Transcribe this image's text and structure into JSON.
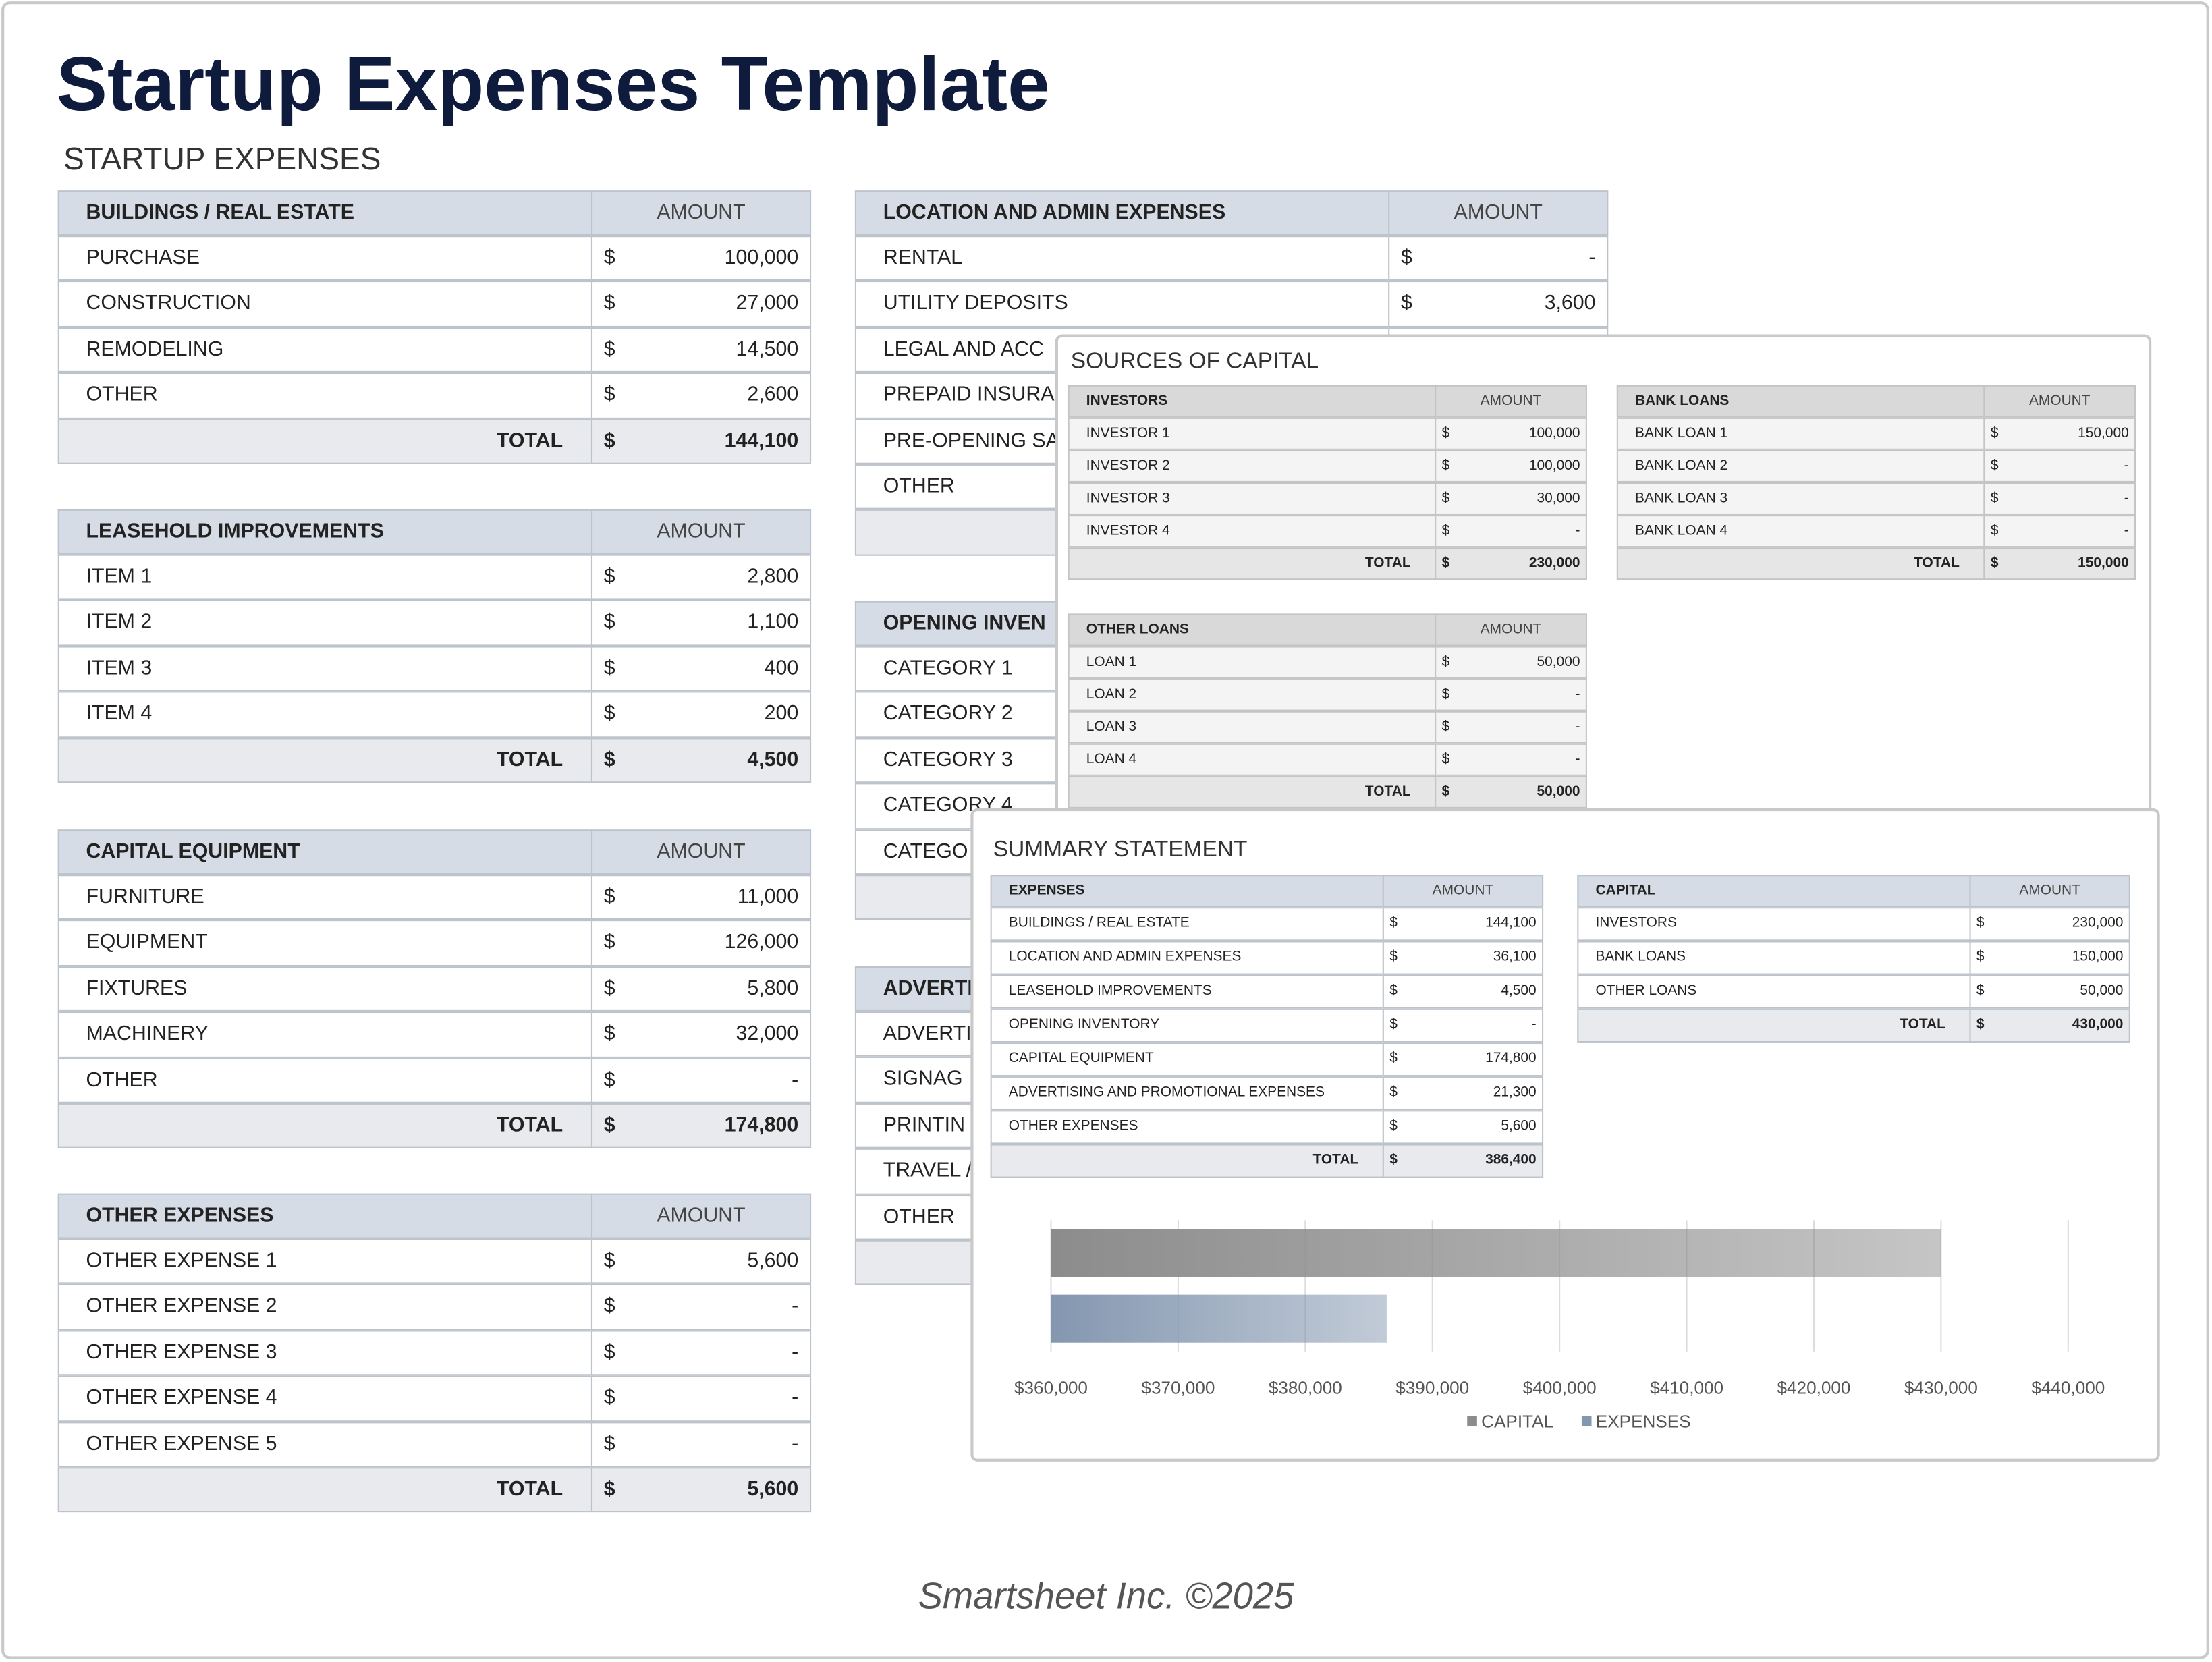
{
  "title": "Startup Expenses Template",
  "heading": "STARTUP EXPENSES",
  "currency": "$",
  "expense_tables": [
    {
      "title": "BUILDINGS / REAL ESTATE",
      "amount_header": "AMOUNT",
      "rows": [
        {
          "label": "PURCHASE",
          "amount": "100,000"
        },
        {
          "label": "CONSTRUCTION",
          "amount": "27,000"
        },
        {
          "label": "REMODELING",
          "amount": "14,500"
        },
        {
          "label": "OTHER",
          "amount": "2,600"
        }
      ],
      "total_label": "TOTAL",
      "total": "144,100"
    },
    {
      "title": "LEASEHOLD IMPROVEMENTS",
      "amount_header": "AMOUNT",
      "rows": [
        {
          "label": "ITEM 1",
          "amount": "2,800"
        },
        {
          "label": "ITEM 2",
          "amount": "1,100"
        },
        {
          "label": "ITEM 3",
          "amount": "400"
        },
        {
          "label": "ITEM 4",
          "amount": "200"
        }
      ],
      "total_label": "TOTAL",
      "total": "4,500"
    },
    {
      "title": "CAPITAL EQUIPMENT",
      "amount_header": "AMOUNT",
      "rows": [
        {
          "label": "FURNITURE",
          "amount": "11,000"
        },
        {
          "label": "EQUIPMENT",
          "amount": "126,000"
        },
        {
          "label": "FIXTURES",
          "amount": "5,800"
        },
        {
          "label": "MACHINERY",
          "amount": "32,000"
        },
        {
          "label": "OTHER",
          "amount": "-"
        }
      ],
      "total_label": "TOTAL",
      "total": "174,800"
    },
    {
      "title": "OTHER EXPENSES",
      "amount_header": "AMOUNT",
      "rows": [
        {
          "label": "OTHER EXPENSE 1",
          "amount": "5,600"
        },
        {
          "label": "OTHER EXPENSE 2",
          "amount": "-"
        },
        {
          "label": "OTHER EXPENSE 3",
          "amount": "-"
        },
        {
          "label": "OTHER EXPENSE 4",
          "amount": "-"
        },
        {
          "label": "OTHER EXPENSE 5",
          "amount": "-"
        }
      ],
      "total_label": "TOTAL",
      "total": "5,600"
    },
    {
      "title": "LOCATION AND ADMIN EXPENSES",
      "amount_header": "AMOUNT",
      "rows": [
        {
          "label": "RENTAL",
          "amount": "-"
        },
        {
          "label": "UTILITY DEPOSITS",
          "amount": "3,600"
        },
        {
          "label": "LEGAL AND ACC"
        },
        {
          "label": "PREPAID INSURAN"
        },
        {
          "label": "PRE-OPENING SA"
        },
        {
          "label": "OTHER"
        }
      ]
    },
    {
      "title": "OPENING INVEN",
      "rows": [
        {
          "label": "CATEGORY 1"
        },
        {
          "label": "CATEGORY 2"
        },
        {
          "label": "CATEGORY 3"
        },
        {
          "label": "CATEGORY 4"
        },
        {
          "label": "CATEGO"
        }
      ]
    },
    {
      "title": "ADVERTI",
      "rows": [
        {
          "label": "ADVERTI"
        },
        {
          "label": "SIGNAG"
        },
        {
          "label": "PRINTIN"
        },
        {
          "label": "TRAVEL /"
        },
        {
          "label": "OTHER"
        }
      ]
    }
  ],
  "sources_of_capital": {
    "heading": "SOURCES OF CAPITAL",
    "tables": [
      {
        "title": "INVESTORS",
        "amount_header": "AMOUNT",
        "rows": [
          {
            "label": "INVESTOR 1",
            "amount": "100,000"
          },
          {
            "label": "INVESTOR 2",
            "amount": "100,000"
          },
          {
            "label": "INVESTOR 3",
            "amount": "30,000"
          },
          {
            "label": "INVESTOR 4",
            "amount": "-"
          }
        ],
        "total_label": "TOTAL",
        "total": "230,000"
      },
      {
        "title": "BANK LOANS",
        "amount_header": "AMOUNT",
        "rows": [
          {
            "label": "BANK LOAN 1",
            "amount": "150,000"
          },
          {
            "label": "BANK LOAN 2",
            "amount": "-"
          },
          {
            "label": "BANK LOAN 3",
            "amount": "-"
          },
          {
            "label": "BANK LOAN 4",
            "amount": "-"
          }
        ],
        "total_label": "TOTAL",
        "total": "150,000"
      },
      {
        "title": "OTHER LOANS",
        "amount_header": "AMOUNT",
        "rows": [
          {
            "label": "LOAN 1",
            "amount": "50,000"
          },
          {
            "label": "LOAN 2",
            "amount": "-"
          },
          {
            "label": "LOAN 3",
            "amount": "-"
          },
          {
            "label": "LOAN 4",
            "amount": "-"
          }
        ],
        "total_label": "TOTAL",
        "total": "50,000"
      }
    ]
  },
  "summary_statement": {
    "heading": "SUMMARY STATEMENT",
    "tables": [
      {
        "title": "EXPENSES",
        "amount_header": "AMOUNT",
        "rows": [
          {
            "label": "BUILDINGS / REAL ESTATE",
            "amount": "144,100"
          },
          {
            "label": "LOCATION AND ADMIN EXPENSES",
            "amount": "36,100"
          },
          {
            "label": "LEASEHOLD IMPROVEMENTS",
            "amount": "4,500"
          },
          {
            "label": "OPENING INVENTORY",
            "amount": "-"
          },
          {
            "label": "CAPITAL EQUIPMENT",
            "amount": "174,800"
          },
          {
            "label": "ADVERTISING AND PROMOTIONAL EXPENSES",
            "amount": "21,300"
          },
          {
            "label": "OTHER EXPENSES",
            "amount": "5,600"
          }
        ],
        "total_label": "TOTAL",
        "total": "386,400"
      },
      {
        "title": "CAPITAL",
        "amount_header": "AMOUNT",
        "rows": [
          {
            "label": "INVESTORS",
            "amount": "230,000"
          },
          {
            "label": "BANK LOANS",
            "amount": "150,000"
          },
          {
            "label": "OTHER LOANS",
            "amount": "50,000"
          }
        ],
        "total_label": "TOTAL",
        "total": "430,000"
      }
    ]
  },
  "chart_data": {
    "type": "bar",
    "orientation": "horizontal",
    "series": [
      {
        "name": "CAPITAL",
        "color": "#8c8c8c",
        "values": [
          430000
        ]
      },
      {
        "name": "EXPENSES",
        "color": "#8497b0",
        "values": [
          386400
        ]
      }
    ],
    "xlim": [
      360000,
      440000
    ],
    "xticks": [
      {
        "value": 360000,
        "label": "$360,000"
      },
      {
        "value": 370000,
        "label": "$370,000"
      },
      {
        "value": 380000,
        "label": "$380,000"
      },
      {
        "value": 390000,
        "label": "$390,000"
      },
      {
        "value": 400000,
        "label": "$400,000"
      },
      {
        "value": 410000,
        "label": "$410,000"
      },
      {
        "value": 420000,
        "label": "$420,000"
      },
      {
        "value": 430000,
        "label": "$430,000"
      },
      {
        "value": 440000,
        "label": "$440,000"
      }
    ],
    "grid": true,
    "legend": "bottom"
  },
  "footer": "Smartsheet Inc. ©2025"
}
